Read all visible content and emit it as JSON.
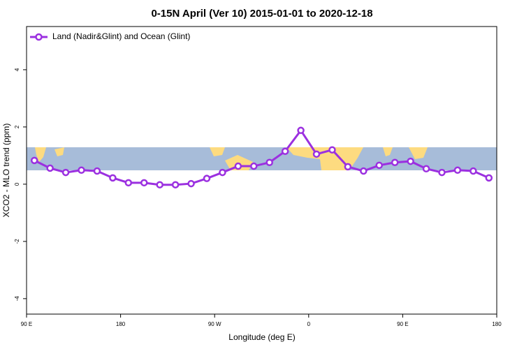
{
  "chart_data": {
    "type": "line",
    "title": "0-15N April (Ver 10)   2015-01-01 to 2020-12-18",
    "x_label": "Longitude (deg E)",
    "y_label": "XCO2 - MLO trend (ppm)",
    "x": [
      97.5,
      112.5,
      127.5,
      142.5,
      157.5,
      172.5,
      187.5,
      202.5,
      217.5,
      232.5,
      247.5,
      262.5,
      277.5,
      292.5,
      307.5,
      322.5,
      337.5,
      352.5,
      367.5,
      382.5,
      397.5,
      412.5,
      427.5,
      442.5,
      457.5,
      472.5,
      487.5,
      502.5,
      517.5,
      532.5
    ],
    "series": [
      {
        "name": "Land (Nadir&Glint) and Ocean (Glint)",
        "color": "#9b30e0",
        "values": [
          0.83,
          0.56,
          0.41,
          0.49,
          0.46,
          0.22,
          0.05,
          0.05,
          -0.02,
          -0.02,
          0.02,
          0.2,
          0.41,
          0.63,
          0.63,
          0.76,
          1.15,
          1.88,
          1.05,
          1.2,
          0.61,
          0.46,
          0.66,
          0.76,
          0.8,
          0.54,
          0.41,
          0.49,
          0.46,
          0.22
        ]
      }
    ],
    "xlim": [
      90,
      540
    ],
    "xticks": [
      {
        "value": 90,
        "label": "90 E"
      },
      {
        "value": 180,
        "label": "180"
      },
      {
        "value": 270,
        "label": "90 W"
      },
      {
        "value": 360,
        "label": "0"
      },
      {
        "value": 450,
        "label": "90 E"
      },
      {
        "value": 540,
        "label": "180"
      }
    ],
    "ylim": [
      -4.54,
      5.51
    ],
    "yticks": [
      -4,
      -2,
      0,
      2,
      4
    ],
    "legend": "top-left"
  }
}
